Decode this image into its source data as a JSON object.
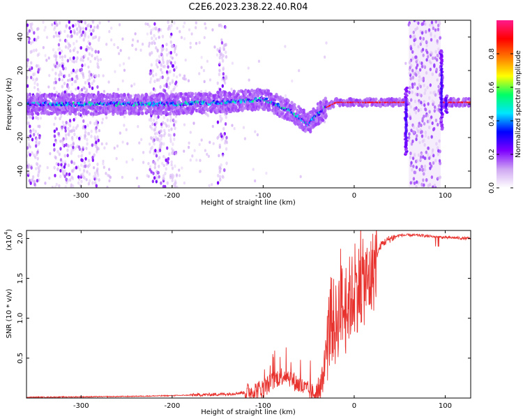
{
  "figure": {
    "title": "C2E6.2023.238.22.40.R04"
  },
  "colors": {
    "snr_line": "#e8322e",
    "frame": "#000000",
    "background": "#ffffff"
  },
  "chart_data": [
    {
      "type": "heatmap",
      "name": "spectrogram",
      "title": "C2E6.2023.238.22.40.R04",
      "xlabel": "Height of straight line (km)",
      "ylabel": "Frequency (Hz)",
      "xlim": [
        -360,
        128
      ],
      "ylim": [
        -50,
        50
      ],
      "xticks": [
        -300,
        -200,
        -100,
        0,
        100
      ],
      "yticks": [
        -40,
        -20,
        0,
        20,
        40
      ],
      "colorbar": {
        "label": "Normalized spectral amplitude",
        "range": [
          0.0,
          1.0
        ],
        "ticks": [
          0.0,
          0.2,
          0.4,
          0.6,
          0.8
        ],
        "colormap": [
          "#ffffff",
          "#cfa7f2",
          "#7e00ff",
          "#0000ff",
          "#00e5ff",
          "#00ff66",
          "#ffff00",
          "#ff7a00",
          "#ff0000",
          "#ff1a8c"
        ]
      },
      "trace_center": [
        [
          -360,
          0
        ],
        [
          -300,
          0
        ],
        [
          -200,
          0
        ],
        [
          -150,
          1
        ],
        [
          -120,
          2
        ],
        [
          -100,
          3
        ],
        [
          -90,
          1
        ],
        [
          -80,
          -2
        ],
        [
          -70,
          -4
        ],
        [
          -60,
          -8
        ],
        [
          -50,
          -12
        ],
        [
          -40,
          -6
        ],
        [
          -30,
          -2
        ],
        [
          -20,
          1
        ],
        [
          0,
          1
        ],
        [
          50,
          1
        ],
        [
          55,
          1
        ],
        [
          100,
          1
        ],
        [
          128,
          1
        ]
      ],
      "noise_bands": [
        [
          -360,
          -345
        ],
        [
          -330,
          -280
        ],
        [
          -225,
          -195
        ],
        [
          -150,
          -140
        ],
        [
          60,
          95
        ]
      ],
      "spikes": [
        {
          "x": 57,
          "fmin": -30,
          "fmax": 10
        },
        {
          "x": 96,
          "fmin": -15,
          "fmax": 32
        },
        {
          "x": 101,
          "fmin": -5,
          "fmax": 5
        }
      ],
      "grid": false
    },
    {
      "type": "line",
      "name": "snr",
      "xlabel": "Height of straight line (km)",
      "ylabel": "SNR (10 * v/v)",
      "y_multiplier_label": "(x10",
      "y_multiplier_exp": "4",
      "xlim": [
        -360,
        128
      ],
      "ylim": [
        0,
        2.1
      ],
      "xticks": [
        -300,
        -200,
        -100,
        0,
        100
      ],
      "yticks": [
        0.5,
        1.0,
        1.5,
        2.0
      ],
      "ytick_labels": [
        "0.5",
        "1.0",
        "1.5",
        "2.0"
      ],
      "profile": [
        [
          -360,
          0.01
        ],
        [
          -300,
          0.015
        ],
        [
          -250,
          0.02
        ],
        [
          -200,
          0.03
        ],
        [
          -170,
          0.04
        ],
        [
          -140,
          0.05
        ],
        [
          -120,
          0.07
        ],
        [
          -100,
          0.12
        ],
        [
          -85,
          0.25
        ],
        [
          -75,
          0.3
        ],
        [
          -65,
          0.2
        ],
        [
          -55,
          0.12
        ],
        [
          -45,
          0.06
        ],
        [
          -35,
          0.2
        ],
        [
          -30,
          0.7
        ],
        [
          -25,
          1.0
        ],
        [
          -20,
          0.9
        ],
        [
          -15,
          1.2
        ],
        [
          -10,
          1.05
        ],
        [
          -5,
          1.25
        ],
        [
          0,
          1.3
        ],
        [
          5,
          1.4
        ],
        [
          10,
          1.45
        ],
        [
          15,
          1.45
        ],
        [
          20,
          1.55
        ],
        [
          25,
          1.8
        ],
        [
          30,
          1.93
        ],
        [
          40,
          2.0
        ],
        [
          50,
          2.04
        ],
        [
          60,
          2.04
        ],
        [
          70,
          2.04
        ],
        [
          80,
          2.03
        ],
        [
          90,
          2.02
        ],
        [
          100,
          2.01
        ],
        [
          110,
          2.01
        ],
        [
          120,
          2.0
        ],
        [
          128,
          2.0
        ]
      ],
      "grid": false
    }
  ]
}
